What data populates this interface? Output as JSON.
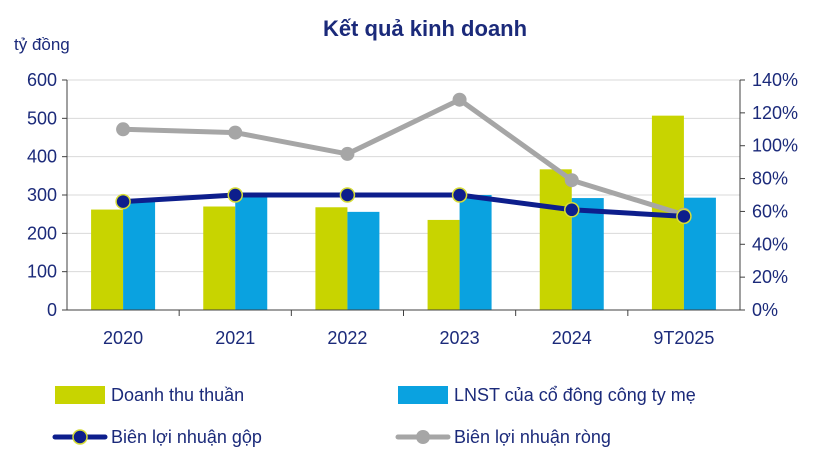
{
  "chart_data": {
    "type": "bar",
    "title": "Kết quả kinh doanh",
    "ylabel": "tỷ đồng",
    "categories": [
      "2020",
      "2021",
      "2022",
      "2023",
      "2024",
      "9T2025"
    ],
    "ylim": [
      0,
      600
    ],
    "yticks": [
      "0",
      "100",
      "200",
      "300",
      "400",
      "500",
      "600"
    ],
    "y2lim": [
      0,
      140
    ],
    "y2ticks": [
      "0%",
      "20%",
      "40%",
      "60%",
      "80%",
      "100%",
      "120%",
      "140%"
    ],
    "series": [
      {
        "name": "Doanh thu thuần",
        "type": "bar",
        "axis": "left",
        "color": "#c8d400",
        "values": [
          262,
          270,
          268,
          235,
          367,
          507
        ]
      },
      {
        "name": "LNST của cổ đông công ty mẹ",
        "type": "bar",
        "axis": "left",
        "color": "#0aa2e0",
        "values": [
          285,
          305,
          256,
          300,
          292,
          293
        ]
      },
      {
        "name": "Biên lợi nhuận gộp",
        "type": "line",
        "axis": "right",
        "color": "#0d1e8c",
        "values": [
          66,
          70,
          70,
          70,
          61,
          57
        ]
      },
      {
        "name": "Biên lợi nhuận ròng",
        "type": "line",
        "axis": "right",
        "color": "#a6a6a6",
        "values": [
          110,
          108,
          95,
          128,
          79,
          58
        ]
      }
    ],
    "grid": true,
    "legend": "bottom"
  }
}
